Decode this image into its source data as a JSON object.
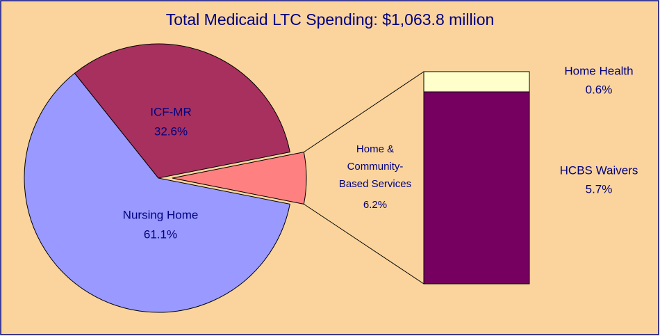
{
  "chart_data": {
    "type": "pie",
    "title": "Total Medicaid LTC Spending: $1,063.8 million",
    "categories": [
      "Nursing Home",
      "ICF-MR",
      "Home & Community-Based Services"
    ],
    "values": [
      61.1,
      32.6,
      6.2
    ],
    "value_labels": [
      "61.1%",
      "32.6%",
      "6.2%"
    ],
    "colors": [
      "#9999FF",
      "#A8305F",
      "#FF8080"
    ],
    "breakdown": {
      "type": "bar",
      "categories": [
        "Home Health",
        "HCBS Waivers"
      ],
      "values": [
        0.6,
        5.7
      ],
      "value_labels": [
        "0.6%",
        "5.7%"
      ],
      "colors": [
        "#FFFFCC",
        "#760060"
      ]
    }
  }
}
